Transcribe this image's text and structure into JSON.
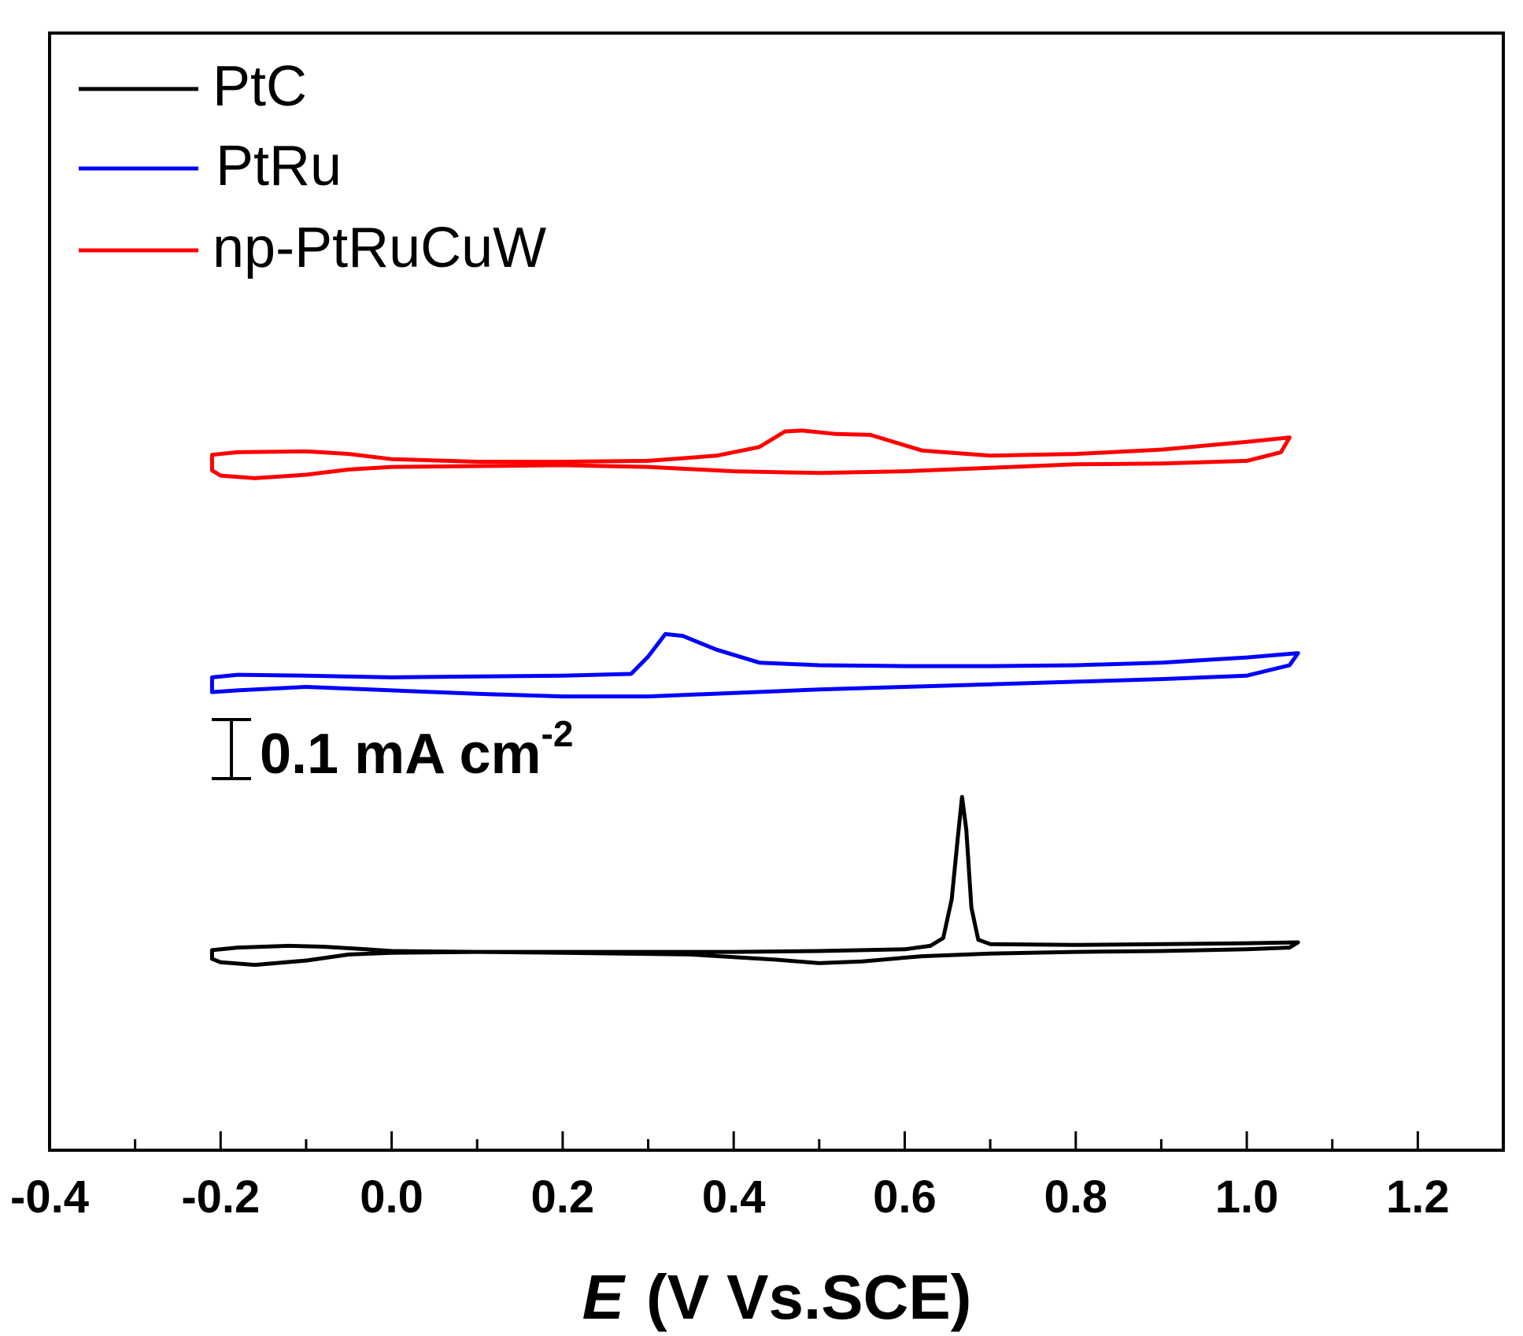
{
  "chart_data": {
    "type": "line",
    "xlabel_symbol": "E",
    "xlabel_unit": "(V Vs.SCE)",
    "xlim": [
      -0.4,
      1.3
    ],
    "x_ticks": [
      "-0.4",
      "-0.2",
      "0.0",
      "0.2",
      "0.4",
      "0.6",
      "0.8",
      "1.0",
      "1.2"
    ],
    "x_tick_values": [
      -0.4,
      -0.2,
      0.0,
      0.2,
      0.4,
      0.6,
      0.8,
      1.0,
      1.2
    ],
    "ylim": [
      0,
      1.29
    ],
    "scale_bar": {
      "text": "0.1 mA cm",
      "superscript": "-2",
      "value_mA_cm2": 0.1
    },
    "legend_position": "top-left",
    "series": [
      {
        "name": "PtC",
        "color": "#000000",
        "forward": [
          [
            -0.21,
            0.231
          ],
          [
            -0.18,
            0.234
          ],
          [
            -0.12,
            0.236
          ],
          [
            -0.08,
            0.235
          ],
          [
            -0.03,
            0.232
          ],
          [
            0.0,
            0.23
          ],
          [
            0.1,
            0.229
          ],
          [
            0.2,
            0.229
          ],
          [
            0.3,
            0.229
          ],
          [
            0.4,
            0.229
          ],
          [
            0.5,
            0.23
          ],
          [
            0.6,
            0.232
          ],
          [
            0.63,
            0.236
          ],
          [
            0.645,
            0.245
          ],
          [
            0.655,
            0.29
          ],
          [
            0.662,
            0.36
          ],
          [
            0.667,
            0.408
          ],
          [
            0.672,
            0.37
          ],
          [
            0.678,
            0.28
          ],
          [
            0.686,
            0.243
          ],
          [
            0.7,
            0.238
          ],
          [
            0.8,
            0.237
          ],
          [
            0.9,
            0.238
          ],
          [
            1.0,
            0.239
          ],
          [
            1.06,
            0.24
          ]
        ],
        "reverse": [
          [
            1.06,
            0.24
          ],
          [
            1.05,
            0.234
          ],
          [
            1.0,
            0.232
          ],
          [
            0.9,
            0.23
          ],
          [
            0.8,
            0.229
          ],
          [
            0.7,
            0.227
          ],
          [
            0.62,
            0.224
          ],
          [
            0.55,
            0.218
          ],
          [
            0.5,
            0.216
          ],
          [
            0.45,
            0.22
          ],
          [
            0.35,
            0.226
          ],
          [
            0.2,
            0.228
          ],
          [
            0.1,
            0.229
          ],
          [
            0.0,
            0.228
          ],
          [
            -0.05,
            0.226
          ],
          [
            -0.1,
            0.219
          ],
          [
            -0.16,
            0.214
          ],
          [
            -0.2,
            0.217
          ],
          [
            -0.21,
            0.221
          ],
          [
            -0.21,
            0.231
          ]
        ]
      },
      {
        "name": "PtRu",
        "color": "#0000ff",
        "forward": [
          [
            -0.21,
            0.546
          ],
          [
            -0.18,
            0.549
          ],
          [
            -0.1,
            0.548
          ],
          [
            0.0,
            0.546
          ],
          [
            0.1,
            0.547
          ],
          [
            0.2,
            0.548
          ],
          [
            0.28,
            0.55
          ],
          [
            0.3,
            0.57
          ],
          [
            0.32,
            0.596
          ],
          [
            0.34,
            0.594
          ],
          [
            0.38,
            0.578
          ],
          [
            0.43,
            0.563
          ],
          [
            0.5,
            0.56
          ],
          [
            0.6,
            0.559
          ],
          [
            0.7,
            0.559
          ],
          [
            0.8,
            0.56
          ],
          [
            0.9,
            0.563
          ],
          [
            1.0,
            0.569
          ],
          [
            1.06,
            0.574
          ]
        ],
        "reverse": [
          [
            1.06,
            0.574
          ],
          [
            1.05,
            0.56
          ],
          [
            1.0,
            0.548
          ],
          [
            0.9,
            0.544
          ],
          [
            0.8,
            0.541
          ],
          [
            0.7,
            0.538
          ],
          [
            0.6,
            0.535
          ],
          [
            0.5,
            0.532
          ],
          [
            0.4,
            0.528
          ],
          [
            0.3,
            0.524
          ],
          [
            0.2,
            0.524
          ],
          [
            0.1,
            0.527
          ],
          [
            0.0,
            0.531
          ],
          [
            -0.1,
            0.535
          ],
          [
            -0.18,
            0.531
          ],
          [
            -0.21,
            0.529
          ],
          [
            -0.21,
            0.546
          ]
        ]
      },
      {
        "name": "np-PtRuCuW",
        "color": "#ff0000",
        "forward": [
          [
            -0.21,
            0.803
          ],
          [
            -0.18,
            0.806
          ],
          [
            -0.1,
            0.807
          ],
          [
            -0.05,
            0.804
          ],
          [
            0.0,
            0.798
          ],
          [
            0.1,
            0.795
          ],
          [
            0.2,
            0.795
          ],
          [
            0.3,
            0.796
          ],
          [
            0.38,
            0.802
          ],
          [
            0.43,
            0.812
          ],
          [
            0.46,
            0.83
          ],
          [
            0.48,
            0.831
          ],
          [
            0.52,
            0.827
          ],
          [
            0.56,
            0.826
          ],
          [
            0.58,
            0.82
          ],
          [
            0.62,
            0.808
          ],
          [
            0.7,
            0.802
          ],
          [
            0.8,
            0.804
          ],
          [
            0.9,
            0.809
          ],
          [
            1.0,
            0.818
          ],
          [
            1.05,
            0.823
          ]
        ],
        "reverse": [
          [
            1.05,
            0.823
          ],
          [
            1.04,
            0.806
          ],
          [
            1.0,
            0.796
          ],
          [
            0.9,
            0.793
          ],
          [
            0.8,
            0.792
          ],
          [
            0.7,
            0.788
          ],
          [
            0.6,
            0.784
          ],
          [
            0.5,
            0.782
          ],
          [
            0.4,
            0.784
          ],
          [
            0.3,
            0.789
          ],
          [
            0.2,
            0.791
          ],
          [
            0.1,
            0.79
          ],
          [
            0.0,
            0.789
          ],
          [
            -0.05,
            0.786
          ],
          [
            -0.1,
            0.78
          ],
          [
            -0.16,
            0.776
          ],
          [
            -0.2,
            0.779
          ],
          [
            -0.21,
            0.785
          ],
          [
            -0.21,
            0.803
          ]
        ]
      }
    ]
  }
}
